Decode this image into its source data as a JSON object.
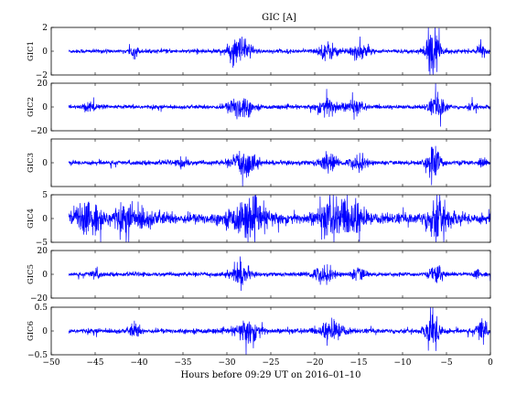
{
  "chart_data": {
    "type": "line",
    "title": "GIC [A]",
    "xlabel": "Hours before  09:29 UT on 2016–01–10",
    "xlim": [
      -50,
      0
    ],
    "xticks": [
      -50,
      -45,
      -40,
      -35,
      -30,
      -25,
      -20,
      -15,
      -10,
      -5,
      0
    ],
    "x_range": [
      -48,
      0
    ],
    "line_color": "#0000ff",
    "panels": [
      {
        "ylabel": "GIC1",
        "ylim": [
          -2,
          2
        ],
        "yticks": [
          -2,
          0,
          2
        ],
        "baseline": 0.0,
        "noise": 0.08,
        "bursts": [
          {
            "t": -40.5,
            "w": 0.4,
            "a": 0.4
          },
          {
            "t": -28.5,
            "w": 1.3,
            "a": 1.0
          },
          {
            "t": -18.5,
            "w": 1.0,
            "a": 0.6
          },
          {
            "t": -15.0,
            "w": 1.2,
            "a": 0.5
          },
          {
            "t": -6.5,
            "w": 0.8,
            "a": 1.8
          },
          {
            "t": -1.0,
            "w": 0.4,
            "a": 0.6
          }
        ]
      },
      {
        "ylabel": "GIC2",
        "ylim": [
          -20,
          20
        ],
        "yticks": [
          -20,
          0,
          20
        ],
        "baseline": 0.0,
        "noise": 0.8,
        "bursts": [
          {
            "t": -45.5,
            "w": 0.8,
            "a": 3
          },
          {
            "t": -28.5,
            "w": 1.3,
            "a": 9
          },
          {
            "t": -18.5,
            "w": 1.2,
            "a": 7
          },
          {
            "t": -15.5,
            "w": 1.0,
            "a": 5
          },
          {
            "t": -6.0,
            "w": 1.0,
            "a": 8
          },
          {
            "t": -2.0,
            "w": 0.5,
            "a": 3
          }
        ]
      },
      {
        "ylabel": "GIC3",
        "ylim": [
          -2,
          2
        ],
        "yticks": [
          0
        ],
        "baseline": 0.0,
        "noise": 0.09,
        "bursts": [
          {
            "t": -35.0,
            "w": 0.5,
            "a": 0.5
          },
          {
            "t": -28.0,
            "w": 1.3,
            "a": 0.9
          },
          {
            "t": -18.5,
            "w": 1.0,
            "a": 0.6
          },
          {
            "t": -15.0,
            "w": 1.0,
            "a": 0.5
          },
          {
            "t": -6.5,
            "w": 0.8,
            "a": 1.2
          },
          {
            "t": -1.0,
            "w": 0.4,
            "a": 0.4
          }
        ]
      },
      {
        "ylabel": "GIC4",
        "ylim": [
          -5,
          5
        ],
        "yticks": [
          -5,
          0,
          5
        ],
        "baseline": 0.0,
        "noise": 0.55,
        "bursts": [
          {
            "t": -46.0,
            "w": 1.5,
            "a": 2.5
          },
          {
            "t": -41.0,
            "w": 2.5,
            "a": 1.8
          },
          {
            "t": -27.5,
            "w": 2.0,
            "a": 2.8
          },
          {
            "t": -18.0,
            "w": 1.5,
            "a": 3.2
          },
          {
            "t": -15.5,
            "w": 1.2,
            "a": 2.5
          },
          {
            "t": -6.0,
            "w": 1.2,
            "a": 3.8
          }
        ]
      },
      {
        "ylabel": "GIC5",
        "ylim": [
          -20,
          20
        ],
        "yticks": [
          -20,
          0,
          20
        ],
        "baseline": 0.0,
        "noise": 0.8,
        "bursts": [
          {
            "t": -45.0,
            "w": 0.6,
            "a": 3
          },
          {
            "t": -28.5,
            "w": 1.0,
            "a": 9
          },
          {
            "t": -19.0,
            "w": 1.2,
            "a": 6
          },
          {
            "t": -15.0,
            "w": 0.8,
            "a": 5
          },
          {
            "t": -6.0,
            "w": 0.8,
            "a": 7
          },
          {
            "t": -1.5,
            "w": 0.4,
            "a": 3
          }
        ]
      },
      {
        "ylabel": "GIC6",
        "ylim": [
          -0.5,
          0.5
        ],
        "yticks": [
          -0.5,
          0,
          0.5
        ],
        "baseline": 0.0,
        "noise": 0.025,
        "bursts": [
          {
            "t": -40.5,
            "w": 0.6,
            "a": 0.12
          },
          {
            "t": -27.5,
            "w": 1.3,
            "a": 0.22
          },
          {
            "t": -18.0,
            "w": 1.3,
            "a": 0.18
          },
          {
            "t": -6.5,
            "w": 0.8,
            "a": 0.36
          },
          {
            "t": -1.0,
            "w": 0.5,
            "a": 0.28
          }
        ]
      }
    ]
  }
}
